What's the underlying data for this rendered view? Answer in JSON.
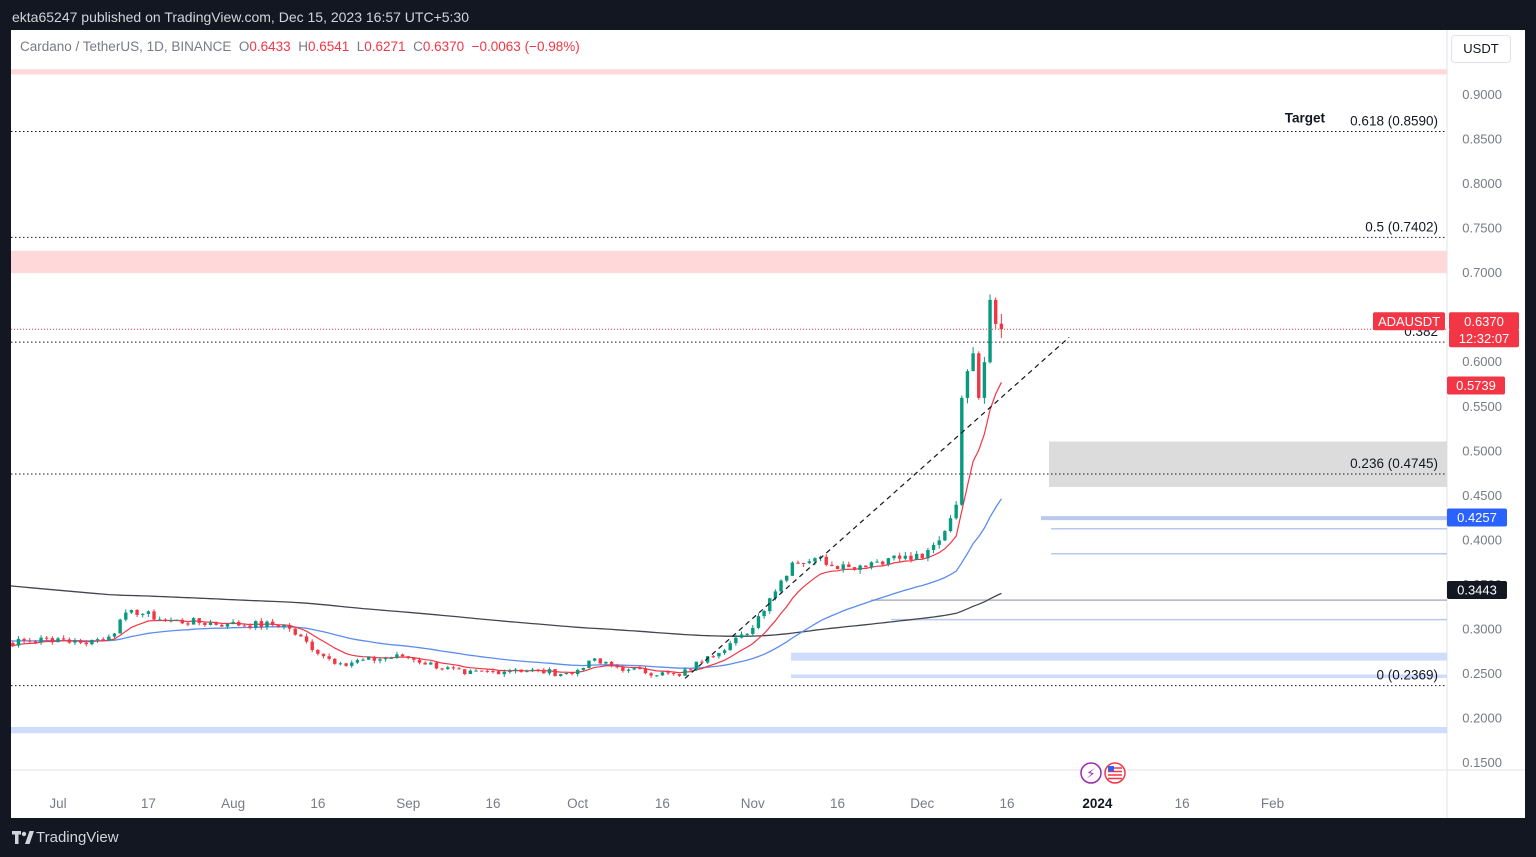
{
  "publisher": "ekta65247 published on TradingView.com, Dec 15, 2023 16:57 UTC+5:30",
  "legend": {
    "symbol": "Cardano / TetherUS, 1D, BINANCE",
    "o_label": "O",
    "o": "0.6433",
    "h_label": "H",
    "h": "0.6541",
    "l_label": "L",
    "l": "0.6271",
    "c_label": "C",
    "c": "0.6370",
    "change": "−0.0063 (−0.98%)"
  },
  "currency_button": "USDT",
  "footer_brand": "TradingView",
  "colors": {
    "up": "#089981",
    "down": "#f23645",
    "ema_fast": "#f23645",
    "ema_mid": "#5b8def",
    "ema_slow": "#434651"
  },
  "chart_data": {
    "type": "candlestick",
    "symbol": "ADAUSDT",
    "y_range": [
      0.15,
      0.95
    ],
    "y_ticks": [
      "0.9000",
      "0.8500",
      "0.8000",
      "0.7500",
      "0.7000",
      "0.6500",
      "0.6000",
      "0.5500",
      "0.5000",
      "0.4500",
      "0.4000",
      "0.3500",
      "0.3000",
      "0.2500",
      "0.2000",
      "0.1500"
    ],
    "x_ticks": [
      {
        "label": "Jul",
        "date": "2023-07-01"
      },
      {
        "label": "17",
        "date": "2023-07-17"
      },
      {
        "label": "Aug",
        "date": "2023-08-01"
      },
      {
        "label": "16",
        "date": "2023-08-16"
      },
      {
        "label": "Sep",
        "date": "2023-09-01"
      },
      {
        "label": "16",
        "date": "2023-09-16"
      },
      {
        "label": "Oct",
        "date": "2023-10-01"
      },
      {
        "label": "16",
        "date": "2023-10-16"
      },
      {
        "label": "Nov",
        "date": "2023-11-01"
      },
      {
        "label": "16",
        "date": "2023-11-16"
      },
      {
        "label": "Dec",
        "date": "2023-12-01"
      },
      {
        "label": "16",
        "date": "2023-12-16"
      },
      {
        "label": "2024",
        "date": "2024-01-01"
      },
      {
        "label": "16",
        "date": "2024-01-16"
      },
      {
        "label": "Feb",
        "date": "2024-02-01"
      }
    ],
    "x_range": [
      "2023-06-15",
      "2024-02-11"
    ],
    "close_keypoints": [
      [
        "2023-06-15",
        0.28
      ],
      [
        "2023-06-22",
        0.285
      ],
      [
        "2023-07-01",
        0.29
      ],
      [
        "2023-07-05",
        0.285
      ],
      [
        "2023-07-10",
        0.292
      ],
      [
        "2023-07-14",
        0.322
      ],
      [
        "2023-07-20",
        0.31
      ],
      [
        "2023-07-31",
        0.306
      ],
      [
        "2023-08-10",
        0.305
      ],
      [
        "2023-08-17",
        0.27
      ],
      [
        "2023-08-20",
        0.262
      ],
      [
        "2023-08-31",
        0.27
      ],
      [
        "2023-09-11",
        0.25
      ],
      [
        "2023-09-20",
        0.255
      ],
      [
        "2023-09-30",
        0.25
      ],
      [
        "2023-10-03",
        0.265
      ],
      [
        "2023-10-10",
        0.255
      ],
      [
        "2023-10-19",
        0.248
      ],
      [
        "2023-10-24",
        0.27
      ],
      [
        "2023-10-31",
        0.295
      ],
      [
        "2023-11-04",
        0.335
      ],
      [
        "2023-11-08",
        0.375
      ],
      [
        "2023-11-12",
        0.38
      ],
      [
        "2023-11-18",
        0.37
      ],
      [
        "2023-11-25",
        0.38
      ],
      [
        "2023-12-01",
        0.38
      ],
      [
        "2023-12-04",
        0.4
      ],
      [
        "2023-12-07",
        0.44
      ],
      [
        "2023-12-08",
        0.56
      ],
      [
        "2023-12-09",
        0.59
      ],
      [
        "2023-12-10",
        0.61
      ],
      [
        "2023-12-11",
        0.56
      ],
      [
        "2023-12-12",
        0.6
      ],
      [
        "2023-12-13",
        0.67
      ],
      [
        "2023-12-14",
        0.643
      ],
      [
        "2023-12-15",
        0.637
      ]
    ],
    "last_candle": {
      "date": "2023-12-15",
      "open": 0.6433,
      "high": 0.6541,
      "low": 0.6271,
      "close": 0.637
    },
    "ema_fast_value": 0.5739,
    "ema_mid_value": 0.4257,
    "ema_slow_value": 0.3443,
    "last_price_label": "ADAUSDT",
    "last_price": "0.6370",
    "countdown": "12:32:07",
    "ema_fast_label": "0.5739",
    "ema_mid_label": "0.4257",
    "ema_slow_label": "0.3443",
    "fib_levels": [
      {
        "label": "0.618 (0.8590)",
        "price": 0.859
      },
      {
        "label": "0.5 (0.7402)",
        "price": 0.7402
      },
      {
        "label": "0.382",
        "price": 0.6226
      },
      {
        "label": "0.236 (0.4745)",
        "price": 0.4745
      },
      {
        "label": "0 (0.2369)",
        "price": 0.2369
      }
    ],
    "annotation": "Target",
    "resistance_zones": [
      [
        0.923,
        0.929
      ],
      [
        0.7,
        0.725
      ]
    ],
    "grey_zone": [
      0.46,
      0.511
    ],
    "support_lines": [
      0.425,
      0.413,
      0.385,
      0.333,
      0.311
    ],
    "support_zones": [
      [
        0.265,
        0.274
      ],
      [
        0.2455,
        0.2495
      ],
      [
        0.1835,
        0.1905
      ]
    ],
    "trendline": {
      "from": [
        "2023-10-20",
        0.245
      ],
      "to": [
        "2023-12-27",
        0.628
      ]
    }
  }
}
